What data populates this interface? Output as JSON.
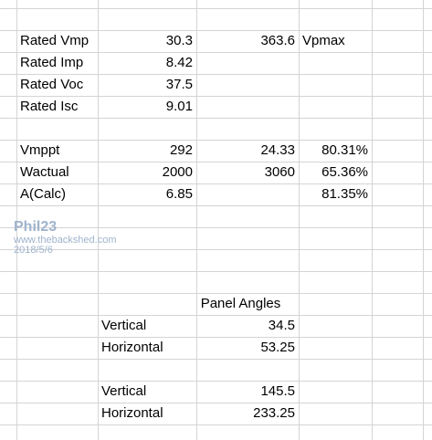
{
  "sheet": {
    "top": {
      "rated_vmp": {
        "label": "Rated Vmp",
        "value": "30.3",
        "calc": "363.6",
        "note": "Vpmax"
      },
      "rated_imp": {
        "label": "Rated Imp",
        "value": "8.42"
      },
      "rated_voc": {
        "label": "Rated Voc",
        "value": "37.5"
      },
      "rated_isc": {
        "label": "Rated Isc",
        "value": "9.01"
      }
    },
    "mid": {
      "vmppt": {
        "label": "Vmppt",
        "value": "292",
        "calc": "24.33",
        "pct": "80.31%"
      },
      "wactual": {
        "label": "Wactual",
        "value": "2000",
        "calc": "3060",
        "pct": "65.36%"
      },
      "a_calc": {
        "label": "A(Calc)",
        "value": "6.85",
        "pct": "81.35%"
      }
    },
    "angles": {
      "header": "Panel Angles",
      "set1": {
        "vertical": {
          "label": "Vertical",
          "value": "34.5"
        },
        "horizontal": {
          "label": "Horizontal",
          "value": "53.25"
        }
      },
      "set2": {
        "vertical": {
          "label": "Vertical",
          "value": "145.5"
        },
        "horizontal": {
          "label": "Horizontal",
          "value": "233.25"
        }
      }
    }
  },
  "watermark": {
    "name": "Phil23",
    "url": "www.thebackshed.com",
    "date": "2018/5/6"
  }
}
